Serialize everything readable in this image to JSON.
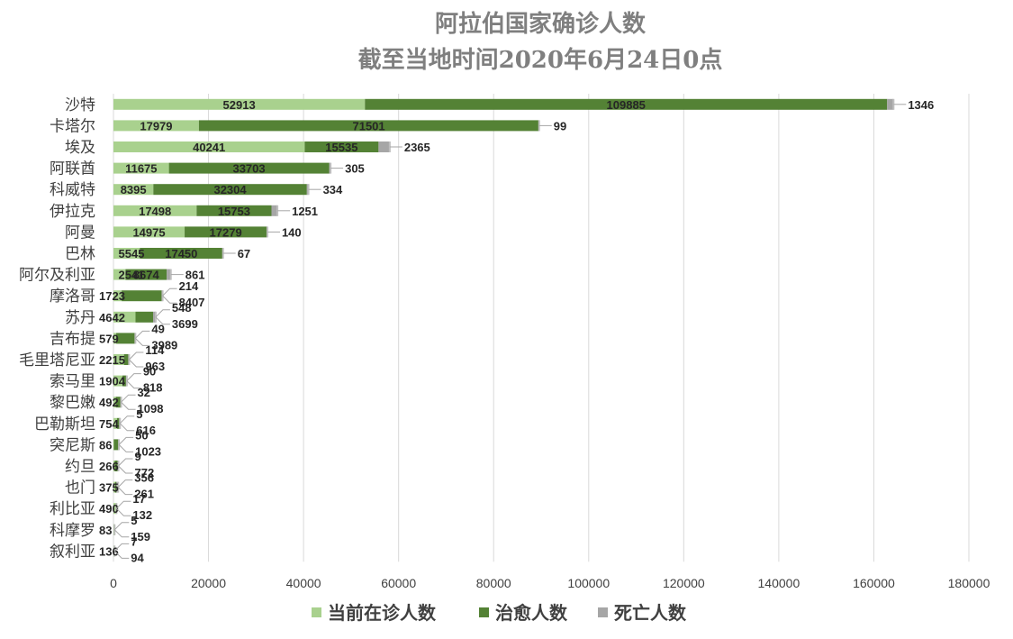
{
  "chart_data": {
    "type": "bar",
    "orientation": "horizontal",
    "stacked": true,
    "title": "阿拉伯国家确诊人数",
    "subtitle": "截至当地时间2020年6月24日0点",
    "categories": [
      "沙特",
      "卡塔尔",
      "埃及",
      "阿联酋",
      "科威特",
      "伊拉克",
      "阿曼",
      "巴林",
      "阿尔及利亚",
      "摩洛哥",
      "苏丹",
      "吉布提",
      "毛里塔尼亚",
      "索马里",
      "黎巴嫩",
      "巴勒斯坦",
      "突尼斯",
      "约旦",
      "也门",
      "利比亚",
      "科摩罗",
      "叙利亚"
    ],
    "series": [
      {
        "name": "当前在诊人数",
        "color": "#a9d18e",
        "values": [
          52913,
          17979,
          40241,
          11675,
          8395,
          17498,
          14975,
          5545,
          2541,
          1723,
          4642,
          579,
          2215,
          1904,
          492,
          754,
          86,
          266,
          375,
          490,
          83,
          136
        ]
      },
      {
        "name": "治愈人数",
        "color": "#548235",
        "values": [
          109885,
          71501,
          15535,
          33703,
          32304,
          15753,
          17279,
          17450,
          8674,
          8407,
          3699,
          3989,
          963,
          818,
          1098,
          616,
          1023,
          772,
          261,
          132,
          159,
          94
        ]
      },
      {
        "name": "死亡人数",
        "color": "#a6a6a6",
        "values": [
          1346,
          99,
          2365,
          305,
          334,
          1251,
          140,
          67,
          861,
          214,
          548,
          49,
          114,
          90,
          32,
          5,
          50,
          9,
          356,
          17,
          5,
          7
        ]
      }
    ],
    "xlim": [
      0,
      180000
    ],
    "xticks": [
      "0",
      "20000",
      "40000",
      "60000",
      "80000",
      "100000",
      "120000",
      "140000",
      "160000",
      "180000"
    ],
    "grid": true,
    "legend": "bottom"
  }
}
